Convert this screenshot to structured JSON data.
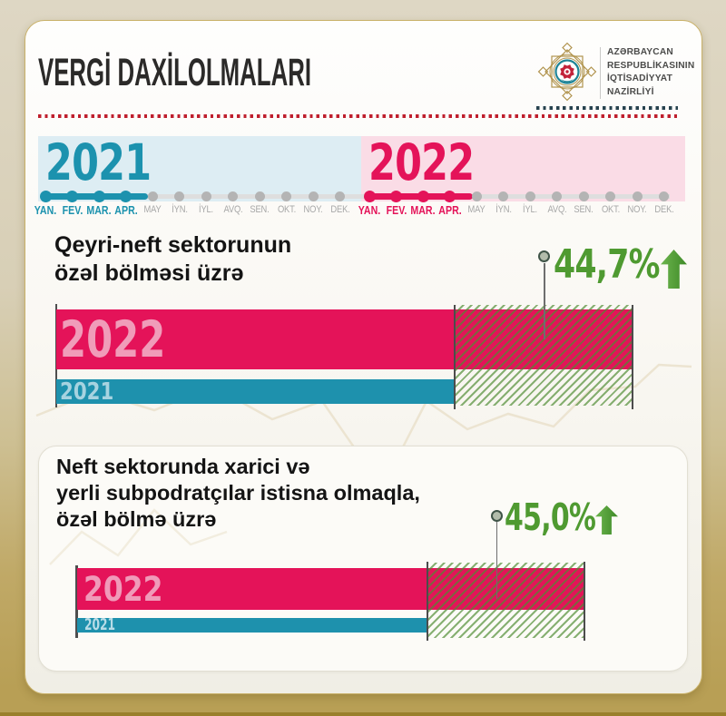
{
  "header": {
    "title": "VERGİ DAXİLOLMALARI",
    "ministry_lines": [
      "AZƏRBAYCAN",
      "RESPUBLİKASININ",
      "İQTİSADİYYAT",
      "NAZİRLİYİ"
    ]
  },
  "timeline": {
    "months": [
      "YAN.",
      "FEV.",
      "MAR.",
      "APR.",
      "MAY",
      "İYN.",
      "İYL.",
      "AVQ.",
      "SEN.",
      "OKT.",
      "NOY.",
      "DEK."
    ],
    "years": [
      {
        "label": "2021",
        "active_count": 4,
        "color": "#1c92ae",
        "band_color": "#ddedf3"
      },
      {
        "label": "2022",
        "active_count": 4,
        "color": "#e41359",
        "band_color": "#fadce6"
      }
    ]
  },
  "chart_data": [
    {
      "type": "bar",
      "title": "Qeyri-neft sektorunun özəl bölməsi üzrə",
      "title_lines": [
        "Qeyri-neft sektorunun",
        "özəl bölməsi üzrə"
      ],
      "categories": [
        "2022",
        "2021"
      ],
      "series": [
        {
          "name": "2022",
          "color": "#e41359",
          "relative_length": 1.447
        },
        {
          "name": "2021",
          "color": "#1e91ad",
          "relative_length": 1.0
        }
      ],
      "growth_label": "44,7%",
      "growth_value": 44.7,
      "growth_direction": "up",
      "growth_color": "#4f9a31"
    },
    {
      "type": "bar",
      "title": "Neft sektorunda xarici və yerli subpodratçılar istisna olmaqla, özəl bölmə üzrə",
      "title_lines": [
        "Neft sektorunda xarici və",
        "yerli subpodratçılar istisna olmaqla,",
        "özəl bölmə üzrə"
      ],
      "categories": [
        "2022",
        "2021"
      ],
      "series": [
        {
          "name": "2022",
          "color": "#e41359",
          "relative_length": 1.45
        },
        {
          "name": "2021",
          "color": "#1e91ad",
          "relative_length": 1.0
        }
      ],
      "growth_label": "45,0%",
      "growth_value": 45.0,
      "growth_direction": "up",
      "growth_color": "#4f9a31"
    }
  ]
}
